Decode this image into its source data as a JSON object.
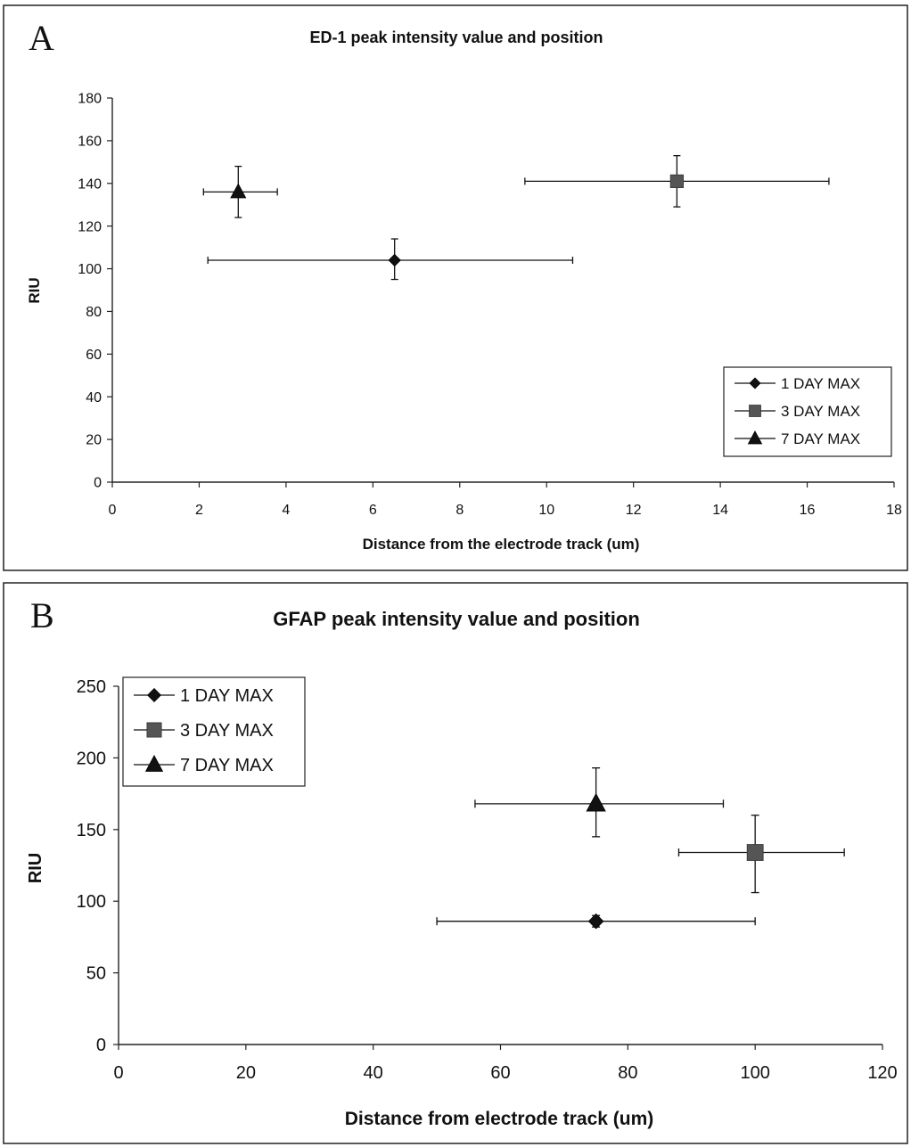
{
  "panels": [
    {
      "letter": "A",
      "chart_data": {
        "type": "scatter",
        "title": "ED-1 peak intensity value and position",
        "xlabel": "Distance from the electrode track (um)",
        "ylabel": "RIU",
        "xlim": [
          0,
          18
        ],
        "ylim": [
          0,
          180
        ],
        "xticks": [
          "0",
          "2",
          "4",
          "6",
          "8",
          "10",
          "12",
          "14",
          "16",
          "18"
        ],
        "yticks": [
          "0",
          "20",
          "40",
          "60",
          "80",
          "100",
          "120",
          "140",
          "160",
          "180"
        ],
        "grid": false,
        "legend_position": "bottom-right",
        "series": [
          {
            "name": "1 DAY MAX",
            "marker": "diamond",
            "color": "#111111",
            "x": 6.5,
            "y": 104,
            "x_err": [
              2.2,
              10.6
            ],
            "y_err": [
              95,
              114
            ]
          },
          {
            "name": "3 DAY MAX",
            "marker": "square",
            "color": "#555555",
            "x": 13.0,
            "y": 141,
            "x_err": [
              9.5,
              16.5
            ],
            "y_err": [
              129,
              153
            ]
          },
          {
            "name": "7 DAY MAX",
            "marker": "triangle",
            "color": "#111111",
            "x": 2.9,
            "y": 136,
            "x_err": [
              2.1,
              3.8
            ],
            "y_err": [
              124,
              148
            ]
          }
        ]
      }
    },
    {
      "letter": "B",
      "chart_data": {
        "type": "scatter",
        "title": "GFAP peak intensity value and position",
        "xlabel": "Distance from electrode track (um)",
        "ylabel": "RIU",
        "xlim": [
          0,
          120
        ],
        "ylim": [
          0,
          250
        ],
        "xticks": [
          "0",
          "20",
          "40",
          "60",
          "80",
          "100",
          "120"
        ],
        "yticks": [
          "0",
          "50",
          "100",
          "150",
          "200",
          "250"
        ],
        "grid": false,
        "legend_position": "top-left",
        "series": [
          {
            "name": "1 DAY MAX",
            "marker": "diamond",
            "color": "#111111",
            "x": 75,
            "y": 86,
            "x_err": [
              50,
              100
            ],
            "y_err": [
              82,
              90
            ]
          },
          {
            "name": "3 DAY MAX",
            "marker": "square",
            "color": "#555555",
            "x": 100,
            "y": 134,
            "x_err": [
              88,
              114
            ],
            "y_err": [
              106,
              160
            ]
          },
          {
            "name": "7 DAY MAX",
            "marker": "triangle",
            "color": "#111111",
            "x": 75,
            "y": 168,
            "x_err": [
              56,
              95
            ],
            "y_err": [
              145,
              193
            ]
          }
        ]
      }
    }
  ]
}
